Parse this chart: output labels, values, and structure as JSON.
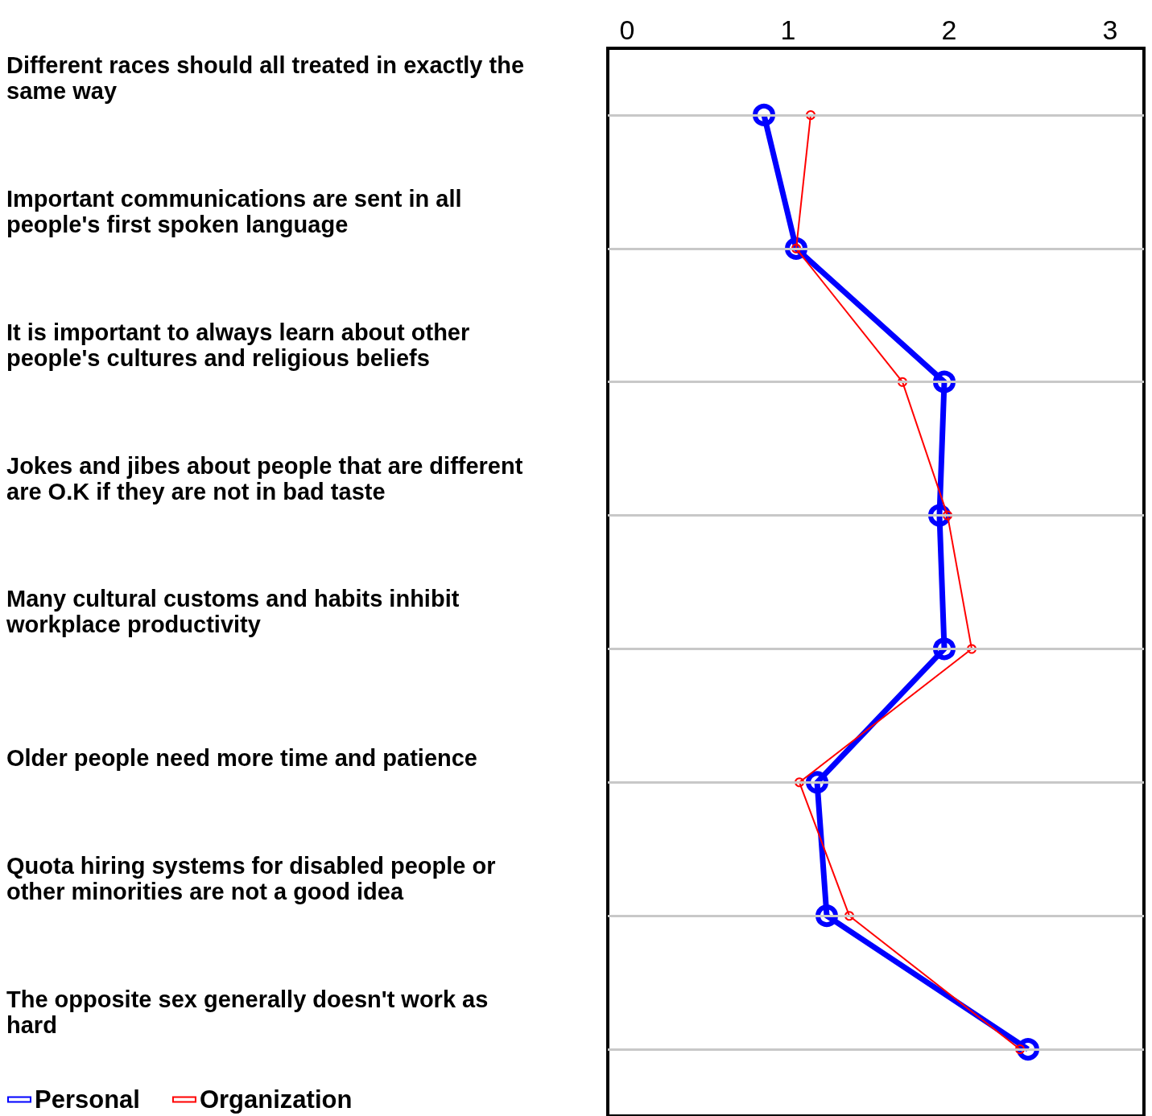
{
  "chart_data": {
    "type": "line",
    "orientation": "horizontal",
    "categories": [
      "Different races should all treated in exactly the same way",
      "Important communications are sent in all people's first spoken language",
      "It is important to always learn about other people's cultures and religious beliefs",
      "Jokes and jibes about people that are different are O.K if they are not in bad taste",
      "Many cultural customs and habits inhibit workplace productivity",
      "Older people need more time and patience",
      "Quota hiring systems for disabled people or other minorities are not a good idea",
      "The opposite sex generally doesn't work as hard"
    ],
    "series": [
      {
        "name": "Personal",
        "color": "#0000ff",
        "values": [
          0.85,
          1.05,
          1.97,
          1.94,
          1.97,
          1.18,
          1.24,
          2.49
        ]
      },
      {
        "name": "Organization",
        "color": "#ff0000",
        "values": [
          1.14,
          1.05,
          1.71,
          1.99,
          2.14,
          1.07,
          1.38,
          2.44
        ]
      }
    ],
    "xlim": [
      -0.12,
      3.21
    ],
    "xticks": [
      0,
      1,
      2,
      3
    ],
    "grid": "y",
    "legend": "bottom left",
    "marker": "circle",
    "line_style": "solid"
  }
}
